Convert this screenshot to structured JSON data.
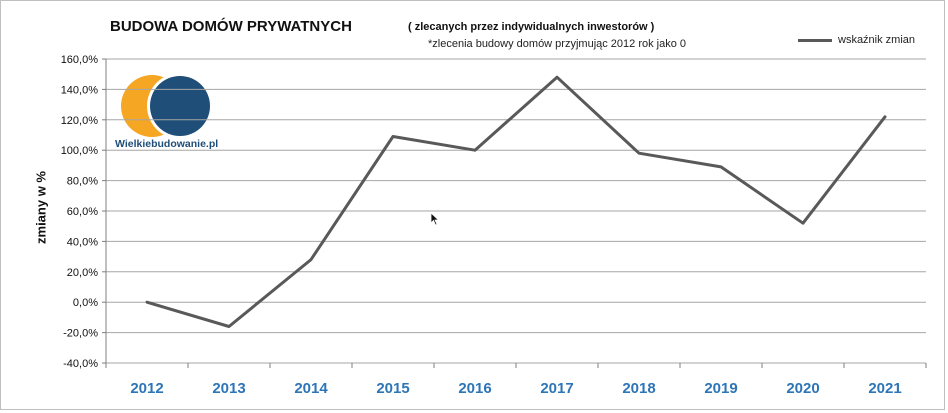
{
  "chart_data": {
    "type": "line",
    "title": "BUDOWA DOMÓW PRYWATNYCH",
    "subtitle": "( zlecanych  przez indywidualnych  inwestorów )",
    "note": "*zlecenia budowy domów przyjmując 2012 rok jako 0",
    "ylabel": "zmiany w %",
    "xlabel": "",
    "ylim": [
      -40,
      160
    ],
    "yticks": [
      {
        "value": -40,
        "label": "-40,0%"
      },
      {
        "value": -20,
        "label": "-20,0%"
      },
      {
        "value": 0,
        "label": "0,0%"
      },
      {
        "value": 20,
        "label": "20,0%"
      },
      {
        "value": 40,
        "label": "40,0%"
      },
      {
        "value": 60,
        "label": "60,0%"
      },
      {
        "value": 80,
        "label": "80,0%"
      },
      {
        "value": 100,
        "label": "100,0%"
      },
      {
        "value": 120,
        "label": "120,0%"
      },
      {
        "value": 140,
        "label": "140,0%"
      },
      {
        "value": 160,
        "label": "160,0%"
      }
    ],
    "grid": true,
    "legend_position": "top-right",
    "categories": [
      "2012",
      "2013",
      "2014",
      "2015",
      "2016",
      "2017",
      "2018",
      "2019",
      "2020",
      "2021"
    ],
    "series": [
      {
        "name": "wskaźnik  zmian",
        "color": "#595959",
        "values": [
          0,
          -16,
          28,
          109,
          100,
          148,
          98,
          89,
          52,
          122
        ]
      }
    ],
    "colors": {
      "line": "#595959",
      "grid": "#a6a6a6",
      "x_tick_label": "#2e75b6",
      "y_tick_label": "#111111"
    }
  },
  "logo": {
    "text": "Wielkiebudowanie.pl",
    "colors": {
      "orange": "#f5a623",
      "navy": "#1f4e79"
    }
  }
}
